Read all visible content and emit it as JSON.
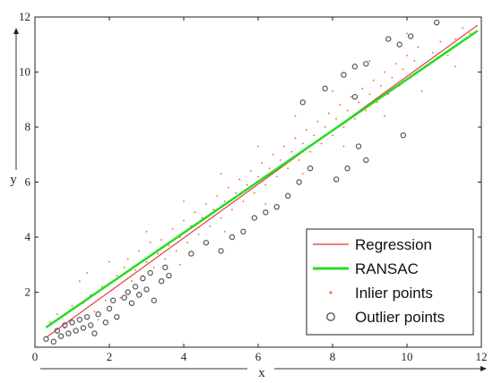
{
  "chart_data": {
    "type": "scatter",
    "xlabel": "x",
    "ylabel": "y",
    "xlim": [
      0,
      12
    ],
    "ylim": [
      0,
      12
    ],
    "xticks": [
      0,
      2,
      4,
      6,
      8,
      10,
      12
    ],
    "yticks": [
      2,
      4,
      6,
      8,
      10,
      12
    ],
    "grid": false,
    "legend_position": "bottom-right",
    "lines": [
      {
        "name": "Regression",
        "color": "#e03030",
        "x": [
          0.3,
          11.9
        ],
        "y": [
          0.35,
          11.7
        ]
      },
      {
        "name": "RANSAC",
        "color": "#22dd22",
        "x": [
          0.3,
          11.9
        ],
        "y": [
          0.72,
          11.5
        ]
      }
    ],
    "series": [
      {
        "name": "Inlier points",
        "color": "#ff5a1e",
        "marker": "dot",
        "points": [
          [
            0.4,
            0.9
          ],
          [
            0.6,
            1.2
          ],
          [
            0.8,
            0.7
          ],
          [
            1.0,
            1.5
          ],
          [
            1.2,
            2.4
          ],
          [
            1.3,
            1.6
          ],
          [
            1.5,
            1.9
          ],
          [
            1.6,
            1.3
          ],
          [
            1.8,
            2.2
          ],
          [
            1.9,
            1.7
          ],
          [
            2.1,
            2.1
          ],
          [
            2.2,
            2.6
          ],
          [
            2.3,
            1.8
          ],
          [
            2.4,
            2.9
          ],
          [
            2.5,
            3.2
          ],
          [
            2.6,
            2.4
          ],
          [
            2.7,
            2.8
          ],
          [
            2.8,
            3.5
          ],
          [
            2.9,
            2.6
          ],
          [
            3.0,
            3.1
          ],
          [
            3.1,
            3.8
          ],
          [
            3.2,
            2.9
          ],
          [
            3.3,
            3.4
          ],
          [
            3.4,
            3.9
          ],
          [
            3.5,
            3.2
          ],
          [
            3.6,
            3.7
          ],
          [
            3.7,
            4.3
          ],
          [
            3.8,
            3.5
          ],
          [
            3.9,
            4.0
          ],
          [
            4.0,
            4.6
          ],
          [
            4.1,
            3.8
          ],
          [
            4.2,
            4.4
          ],
          [
            4.3,
            4.9
          ],
          [
            4.4,
            4.1
          ],
          [
            4.5,
            4.7
          ],
          [
            4.6,
            5.2
          ],
          [
            4.7,
            4.4
          ],
          [
            4.8,
            5.0
          ],
          [
            4.9,
            5.5
          ],
          [
            5.0,
            4.7
          ],
          [
            5.1,
            5.3
          ],
          [
            5.2,
            5.8
          ],
          [
            5.3,
            5.0
          ],
          [
            5.4,
            5.6
          ],
          [
            5.5,
            6.1
          ],
          [
            5.6,
            5.3
          ],
          [
            5.7,
            5.9
          ],
          [
            5.8,
            6.4
          ],
          [
            5.9,
            5.6
          ],
          [
            6.0,
            6.2
          ],
          [
            6.1,
            6.7
          ],
          [
            6.2,
            5.9
          ],
          [
            6.3,
            6.5
          ],
          [
            6.4,
            7.0
          ],
          [
            6.5,
            6.2
          ],
          [
            6.6,
            6.8
          ],
          [
            6.7,
            7.3
          ],
          [
            6.8,
            6.5
          ],
          [
            6.9,
            7.1
          ],
          [
            7.0,
            7.6
          ],
          [
            7.1,
            6.8
          ],
          [
            7.2,
            7.4
          ],
          [
            7.3,
            7.9
          ],
          [
            7.4,
            7.1
          ],
          [
            7.5,
            7.7
          ],
          [
            7.6,
            8.2
          ],
          [
            7.7,
            7.4
          ],
          [
            7.8,
            8.0
          ],
          [
            7.9,
            8.5
          ],
          [
            8.0,
            7.7
          ],
          [
            8.1,
            8.3
          ],
          [
            8.2,
            8.8
          ],
          [
            8.3,
            8.0
          ],
          [
            8.4,
            8.6
          ],
          [
            8.5,
            9.1
          ],
          [
            8.6,
            8.3
          ],
          [
            8.7,
            8.9
          ],
          [
            8.8,
            9.4
          ],
          [
            8.9,
            8.6
          ],
          [
            9.0,
            9.2
          ],
          [
            9.1,
            9.7
          ],
          [
            9.2,
            8.9
          ],
          [
            9.3,
            9.5
          ],
          [
            9.4,
            10.0
          ],
          [
            9.5,
            9.2
          ],
          [
            9.6,
            9.8
          ],
          [
            9.7,
            10.3
          ],
          [
            9.8,
            9.5
          ],
          [
            9.9,
            10.1
          ],
          [
            10.0,
            10.6
          ],
          [
            10.1,
            9.8
          ],
          [
            10.2,
            10.4
          ],
          [
            10.3,
            10.9
          ],
          [
            10.5,
            10.2
          ],
          [
            10.7,
            10.7
          ],
          [
            10.9,
            11.1
          ],
          [
            11.1,
            10.6
          ],
          [
            11.3,
            11.2
          ],
          [
            11.5,
            11.6
          ],
          [
            11.7,
            11.4
          ],
          [
            1.4,
            2.7
          ],
          [
            2.0,
            3.1
          ],
          [
            3.0,
            4.2
          ],
          [
            4.0,
            5.3
          ],
          [
            5.0,
            6.3
          ],
          [
            6.0,
            7.3
          ],
          [
            7.0,
            8.4
          ],
          [
            8.0,
            9.3
          ],
          [
            9.0,
            10.4
          ],
          [
            10.0,
            11.4
          ],
          [
            1.7,
            1.0
          ],
          [
            2.8,
            2.0
          ],
          [
            3.9,
            3.0
          ],
          [
            5.1,
            4.2
          ],
          [
            6.2,
            5.2
          ],
          [
            7.2,
            6.3
          ],
          [
            8.3,
            7.3
          ],
          [
            9.4,
            8.4
          ],
          [
            10.4,
            9.3
          ],
          [
            11.3,
            10.2
          ]
        ]
      },
      {
        "name": "Outlier points",
        "color": "#555555",
        "marker": "open-circle",
        "points": [
          [
            0.3,
            0.3
          ],
          [
            0.5,
            0.2
          ],
          [
            0.6,
            0.6
          ],
          [
            0.7,
            0.4
          ],
          [
            0.8,
            0.8
          ],
          [
            0.9,
            0.5
          ],
          [
            1.0,
            0.9
          ],
          [
            1.1,
            0.6
          ],
          [
            1.2,
            1.0
          ],
          [
            1.3,
            0.7
          ],
          [
            1.4,
            1.1
          ],
          [
            1.5,
            0.8
          ],
          [
            1.6,
            0.5
          ],
          [
            1.7,
            1.2
          ],
          [
            1.9,
            0.9
          ],
          [
            2.0,
            1.4
          ],
          [
            2.1,
            1.7
          ],
          [
            2.2,
            1.1
          ],
          [
            2.4,
            1.8
          ],
          [
            2.5,
            2.0
          ],
          [
            2.6,
            1.6
          ],
          [
            2.7,
            2.2
          ],
          [
            2.8,
            1.9
          ],
          [
            2.9,
            2.5
          ],
          [
            3.0,
            2.1
          ],
          [
            3.1,
            2.7
          ],
          [
            3.2,
            1.7
          ],
          [
            3.4,
            2.4
          ],
          [
            3.5,
            2.9
          ],
          [
            3.6,
            2.6
          ],
          [
            4.2,
            3.4
          ],
          [
            4.6,
            3.8
          ],
          [
            5.0,
            3.5
          ],
          [
            5.3,
            4.0
          ],
          [
            5.6,
            4.2
          ],
          [
            5.9,
            4.7
          ],
          [
            6.2,
            4.9
          ],
          [
            6.5,
            5.1
          ],
          [
            6.8,
            5.5
          ],
          [
            7.1,
            6.0
          ],
          [
            7.4,
            6.5
          ],
          [
            8.1,
            6.1
          ],
          [
            8.4,
            6.5
          ],
          [
            8.7,
            7.3
          ],
          [
            8.9,
            6.8
          ],
          [
            7.2,
            8.9
          ],
          [
            7.8,
            9.4
          ],
          [
            8.3,
            9.9
          ],
          [
            8.6,
            10.2
          ],
          [
            8.9,
            10.3
          ],
          [
            9.5,
            11.2
          ],
          [
            9.8,
            11.0
          ],
          [
            10.1,
            11.3
          ],
          [
            10.8,
            11.8
          ],
          [
            9.9,
            7.7
          ],
          [
            8.6,
            9.1
          ]
        ]
      }
    ],
    "legend": [
      "Regression",
      "RANSAC",
      "Inlier points",
      "Outlier points"
    ]
  }
}
